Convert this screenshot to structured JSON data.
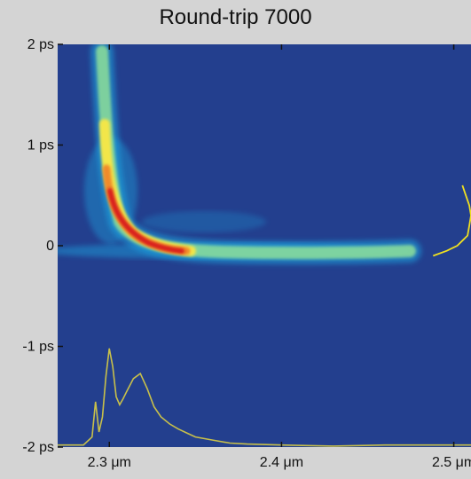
{
  "chart_data": {
    "type": "heatmap",
    "title": "Round-trip 7000",
    "xlabel": "",
    "ylabel": "",
    "x_ticks": [
      {
        "value": 2.3,
        "label": "2.3 μm"
      },
      {
        "value": 2.4,
        "label": "2.4 μm"
      },
      {
        "value": 2.5,
        "label": "2.5 μm"
      }
    ],
    "y_ticks": [
      {
        "value": 2,
        "label": "2 ps"
      },
      {
        "value": 1,
        "label": "1 ps"
      },
      {
        "value": 0,
        "label": "0"
      },
      {
        "value": -1,
        "label": "-1 ps"
      },
      {
        "value": -2,
        "label": "-2 ps"
      }
    ],
    "xlim": [
      2.27,
      2.51
    ],
    "ylim": [
      -2,
      2
    ],
    "background_color": "#233f8e",
    "colormap": [
      "#233f8e",
      "#1aa6e0",
      "#8ee09a",
      "#f2e64a",
      "#f08a2a",
      "#d81e1e"
    ],
    "spectrum_overlay_color": "#c8c04a",
    "temporal_overlay_color": "#f0e020",
    "spectrum_overlay": {
      "x": [
        2.27,
        2.285,
        2.29,
        2.292,
        2.294,
        2.296,
        2.298,
        2.3,
        2.302,
        2.304,
        2.306,
        2.308,
        2.31,
        2.314,
        2.318,
        2.322,
        2.326,
        2.33,
        2.335,
        2.34,
        2.345,
        2.35,
        2.36,
        2.37,
        2.38,
        2.4,
        2.43,
        2.46,
        2.51
      ],
      "y": [
        -1.98,
        -1.98,
        -1.9,
        -1.55,
        -1.85,
        -1.7,
        -1.3,
        -1.02,
        -1.2,
        -1.5,
        -1.58,
        -1.52,
        -1.45,
        -1.32,
        -1.27,
        -1.42,
        -1.6,
        -1.7,
        -1.77,
        -1.82,
        -1.86,
        -1.9,
        -1.93,
        -1.96,
        -1.97,
        -1.98,
        -1.99,
        -1.98,
        -1.98
      ]
    },
    "temporal_overlay": {
      "y": [
        -0.1,
        -0.05,
        0.0,
        0.05,
        0.1,
        0.2,
        0.3,
        0.4,
        0.5,
        0.6
      ],
      "x": [
        2.488,
        2.496,
        2.502,
        2.505,
        2.508,
        2.509,
        2.51,
        2.509,
        2.507,
        2.505
      ]
    }
  }
}
